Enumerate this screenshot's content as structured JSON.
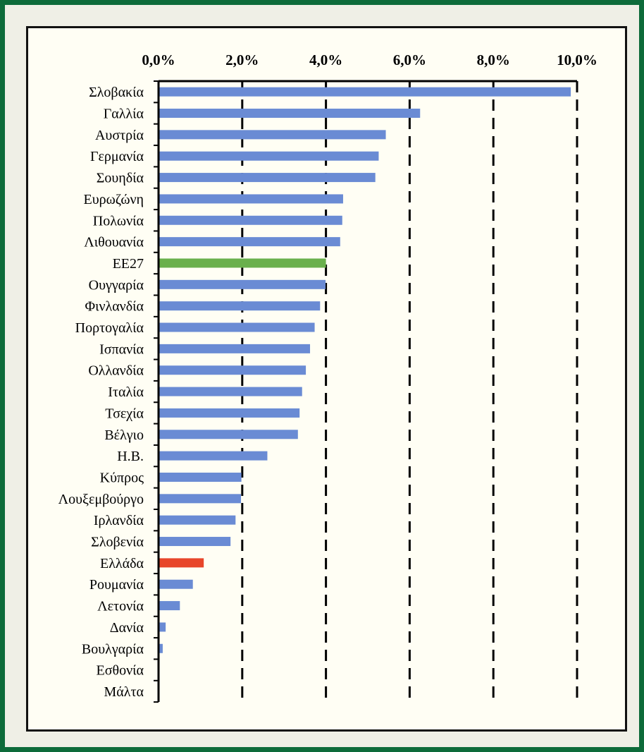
{
  "chart_data": {
    "type": "bar",
    "orientation": "horizontal",
    "title": "",
    "xlabel": "",
    "ylabel": "",
    "xlim": [
      0,
      10
    ],
    "x_ticks": [
      "0,0%",
      "2,0%",
      "4,0%",
      "6,0%",
      "8,0%",
      "10,0%"
    ],
    "x_tick_values": [
      0,
      2,
      4,
      6,
      8,
      10
    ],
    "axis_position": "top",
    "grid": "vertical dashed",
    "colors": {
      "default": "#6a8bd4",
      "highlight_eu": "#6ab04c",
      "highlight_greece": "#e8462a"
    },
    "categories": [
      "Σλοβακία",
      "Γαλλία",
      "Αυστρία",
      "Γερμανία",
      "Σουηδία",
      "Ευρωζώνη",
      "Πολωνία",
      "Λιθουανία",
      "ΕΕ27",
      "Ουγγαρία",
      "Φινλανδία",
      "Πορτογαλία",
      "Ισπανία",
      "Ολλανδία",
      "Ιταλία",
      "Τσεχία",
      "Βέλγιο",
      "Η.Β.",
      "Κύπρος",
      "Λουξεμβούργο",
      "Ιρλανδία",
      "Σλοβενία",
      "Ελλάδα",
      "Ρουμανία",
      "Λετονία",
      "Δανία",
      "Βουλγαρία",
      "Εσθονία",
      "Μάλτα"
    ],
    "values": [
      9.85,
      6.25,
      5.43,
      5.26,
      5.18,
      4.41,
      4.39,
      4.34,
      4.0,
      3.99,
      3.86,
      3.73,
      3.62,
      3.52,
      3.43,
      3.37,
      3.33,
      2.6,
      1.98,
      1.97,
      1.84,
      1.72,
      1.08,
      0.82,
      0.51,
      0.17,
      0.1,
      0.0,
      0.0
    ],
    "bar_colors": [
      "default",
      "default",
      "default",
      "default",
      "default",
      "default",
      "default",
      "default",
      "highlight_eu",
      "default",
      "default",
      "default",
      "default",
      "default",
      "default",
      "default",
      "default",
      "default",
      "default",
      "default",
      "default",
      "default",
      "highlight_greece",
      "default",
      "default",
      "default",
      "default",
      "default",
      "default"
    ]
  }
}
